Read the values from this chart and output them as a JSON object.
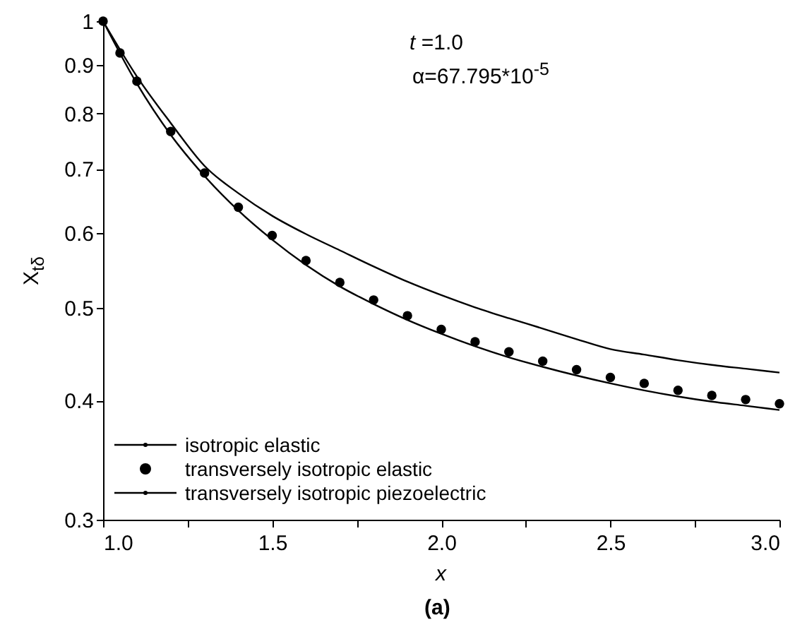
{
  "chart_data": {
    "type": "line",
    "xlabel": "x",
    "ylabel": "X$_{tδ}$",
    "log": "y",
    "xlim": [
      1.0,
      3.0
    ],
    "ylim": [
      0.3,
      1.0
    ],
    "xticks": [
      {
        "value": 1,
        "label": "1.0"
      },
      {
        "value": 1.25,
        "label": null
      },
      {
        "value": 1.5,
        "label": "1.5"
      },
      {
        "value": 1.75,
        "label": null
      },
      {
        "value": 2,
        "label": "2.0"
      },
      {
        "value": 2.25,
        "label": null
      },
      {
        "value": 2.5,
        "label": "2.5"
      },
      {
        "value": 2.75,
        "label": null
      },
      {
        "value": 3,
        "label": "3.0"
      }
    ],
    "yticks": [
      0.3,
      0.4,
      0.5,
      0.6,
      0.7,
      0.8,
      0.9,
      1
    ],
    "x": [
      1.0,
      1.1,
      1.2,
      1.3,
      1.4,
      1.5,
      1.6,
      1.7,
      1.8,
      1.9,
      2.0,
      2.1,
      2.2,
      2.3,
      2.4,
      2.5,
      2.6,
      2.7,
      2.8,
      2.9,
      3.0
    ],
    "series": [
      {
        "name": "isotropic elastic",
        "color": "#000000",
        "values": [
          1,
          0.86,
          0.76,
          0.688,
          0.633,
          0.59,
          0.555,
          0.527,
          0.505,
          0.486,
          0.47,
          0.456,
          0.444,
          0.434,
          0.425,
          0.417,
          0.41,
          0.404,
          0.399,
          0.395,
          0.391
        ]
      },
      {
        "name": "transversely isotropic elastic",
        "type": "scatter",
        "marker": "circle",
        "color": "#000000",
        "x": [
          1.0,
          1.05,
          1.1,
          1.2,
          1.3,
          1.4,
          1.5,
          1.6,
          1.7,
          1.8,
          1.9,
          2.0,
          2.1,
          2.2,
          2.3,
          2.4,
          2.5,
          2.6,
          2.7,
          2.8,
          2.9,
          3.0
        ],
        "values": [
          1,
          0.926,
          0.865,
          0.766,
          0.693,
          0.638,
          0.596,
          0.561,
          0.532,
          0.51,
          0.491,
          0.475,
          0.461,
          0.45,
          0.44,
          0.431,
          0.423,
          0.417,
          0.41,
          0.405,
          0.401,
          0.397
        ]
      },
      {
        "name": "transversely isotropic piezoelectric",
        "color": "#000000",
        "values": [
          1,
          0.875,
          0.782,
          0.705,
          0.66,
          0.625,
          0.598,
          0.575,
          0.553,
          0.533,
          0.516,
          0.501,
          0.488,
          0.476,
          0.464,
          0.453,
          0.447,
          0.441,
          0.436,
          0.432,
          0.428
        ]
      }
    ],
    "legend": "bottom left",
    "grid": false,
    "annotations": [
      "t =1.0",
      "α=67.795*10$^{-5}$",
      "(a)"
    ]
  }
}
